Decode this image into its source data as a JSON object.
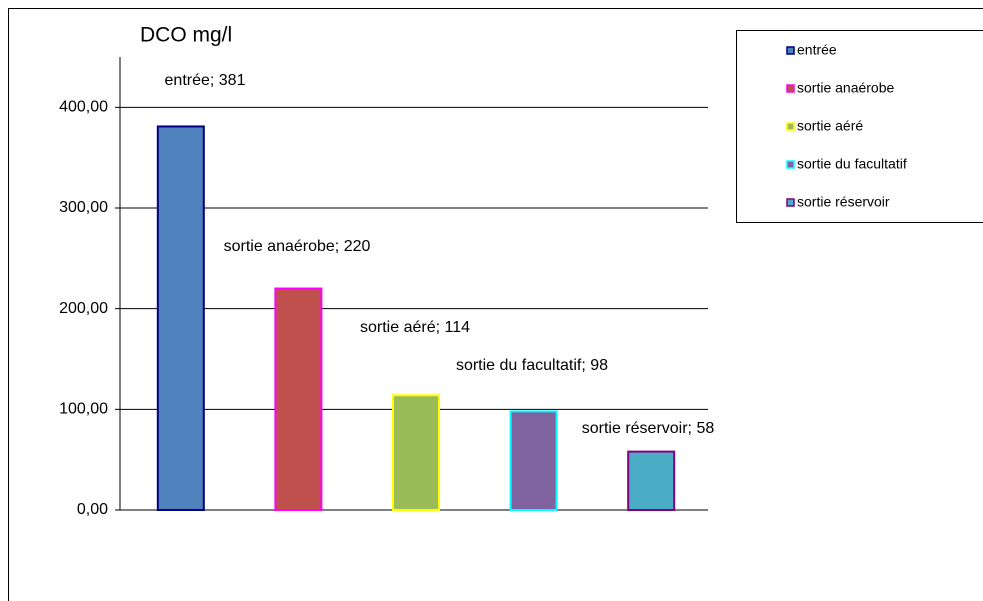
{
  "chart_data": {
    "type": "bar",
    "title": "DCO mg/l",
    "categories": [
      "entrée",
      "sortie anaérobe",
      "sortie aéré",
      "sortie du facultatif",
      "sortie réservoir"
    ],
    "values": [
      381,
      220,
      114,
      98,
      58
    ],
    "value_labels": [
      "entrée; 381",
      "sortie anaérobe; 220",
      "sortie aéré; 114",
      "sortie du facultatif; 98",
      "sortie réservoir; 58"
    ],
    "colors": [
      "#4f81bd",
      "#c0504d",
      "#9bbb59",
      "#8064a2",
      "#4bacc6"
    ],
    "border_colors": [
      "#000080",
      "#ff00ff",
      "#ffff00",
      "#00ffff",
      "#800080"
    ],
    "ylim": [
      0,
      450
    ],
    "yticks": [
      {
        "value": 0,
        "label": "0,00"
      },
      {
        "value": 100,
        "label": "100,00"
      },
      {
        "value": 200,
        "label": "200,00"
      },
      {
        "value": 300,
        "label": "300,00"
      },
      {
        "value": 400,
        "label": "400,00"
      }
    ],
    "grid": true,
    "legend": "right"
  }
}
